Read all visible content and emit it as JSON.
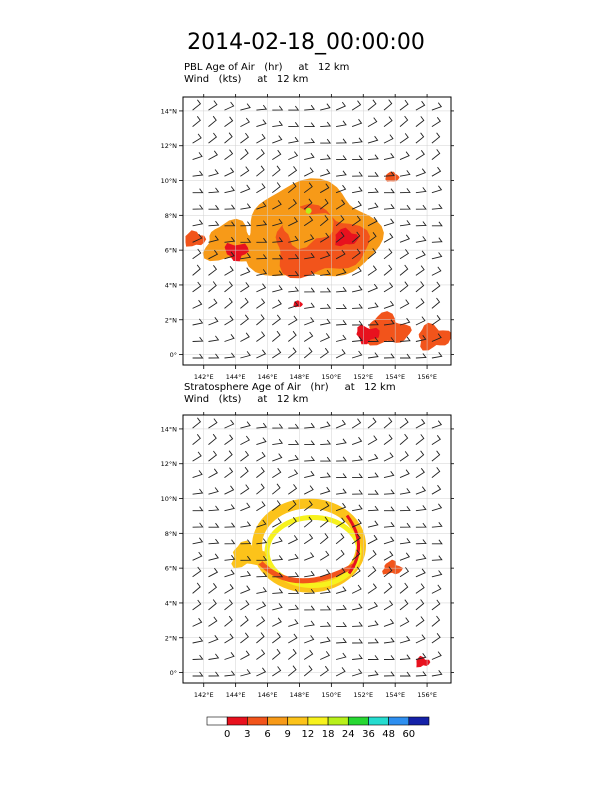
{
  "title": "2014-02-18_00:00:00",
  "panels": [
    {
      "id": "pbl",
      "line1": "PBL Age of Air   (hr)     at   12 km",
      "line2": "Wind   (kts)     at   12 km"
    },
    {
      "id": "strat",
      "line1": "Stratosphere Age of Air   (hr)     at   12 km",
      "line2": "Wind   (kts)     at   12 km"
    }
  ],
  "chart_data": [
    {
      "type": "heatmap",
      "panel": "pbl",
      "title": "PBL Age of Air (hr) at 12 km",
      "overlay": "Wind (kts) at 12 km barbs",
      "x_ticks": [
        "142°E",
        "144°E",
        "146°E",
        "148°E",
        "150°E",
        "152°E",
        "154°E",
        "156°E"
      ],
      "y_ticks": [
        "0°",
        "2°N",
        "4°N",
        "6°N",
        "8°N",
        "10°N",
        "12°N",
        "14°N"
      ],
      "xlim": [
        140.7,
        157.5
      ],
      "ylim": [
        -0.6,
        14.8
      ],
      "grid": true,
      "regions": [
        {
          "name": "central-blob",
          "lon": 148.7,
          "lat": 7.0,
          "level": 6
        },
        {
          "name": "west-tongue",
          "lon": 143.8,
          "lat": 6.4,
          "level": 6
        },
        {
          "name": "north-east-spot",
          "lon": 153.8,
          "lat": 10.2,
          "level": 3
        },
        {
          "name": "small-spot",
          "lon": 147.9,
          "lat": 2.9,
          "level": 3
        },
        {
          "name": "south-east-streak",
          "lon": 153.5,
          "lat": 1.4,
          "level": 3
        },
        {
          "name": "far-south-east",
          "lon": 156.4,
          "lat": 1.0,
          "level": 3
        }
      ]
    },
    {
      "type": "heatmap",
      "panel": "strat",
      "title": "Stratosphere Age of Air (hr) at 12 km",
      "overlay": "Wind (kts) at 12 km barbs",
      "x_ticks": [
        "142°E",
        "144°E",
        "146°E",
        "148°E",
        "150°E",
        "152°E",
        "154°E",
        "156°E"
      ],
      "y_ticks": [
        "0°",
        "2°N",
        "4°N",
        "6°N",
        "8°N",
        "10°N",
        "12°N",
        "14°N"
      ],
      "xlim": [
        140.7,
        157.5
      ],
      "ylim": [
        -0.6,
        14.8
      ],
      "grid": true,
      "regions": [
        {
          "name": "ring",
          "lon": 148.6,
          "lat": 7.3,
          "level": 9
        },
        {
          "name": "east-patch",
          "lon": 153.8,
          "lat": 6.0,
          "level": 6
        },
        {
          "name": "south-east-specks",
          "lon": 155.7,
          "lat": 0.6,
          "level": 3
        }
      ]
    },
    {
      "type": "colorbar",
      "labels": [
        "0",
        "3",
        "6",
        "9",
        "12",
        "18",
        "24",
        "36",
        "48",
        "60"
      ],
      "colors": [
        "#ffffff",
        "#e8111e",
        "#f2541b",
        "#f79a18",
        "#fcc31a",
        "#f7f21d",
        "#b8f01a",
        "#27d832",
        "#25dccf",
        "#2e8ff0",
        "#1421a8"
      ]
    }
  ]
}
